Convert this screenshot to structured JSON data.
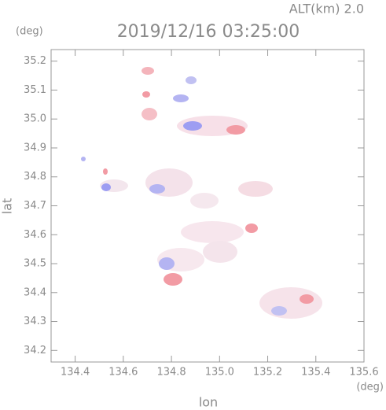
{
  "chart_data": {
    "type": "scatter",
    "title": "2019/12/16 03:25:00",
    "altitude_label": "ALT(km) 2.0",
    "y_unit": "(deg)",
    "x_unit": "(deg)",
    "xlabel": "lon",
    "ylabel": "lat",
    "xlim": [
      134.3,
      135.6
    ],
    "ylim": [
      34.16,
      35.24
    ],
    "xticks": [
      134.4,
      134.6,
      134.8,
      {
        "value": 135.0,
        "label": "135.0"
      },
      135.2,
      135.4,
      135.6
    ],
    "yticks": [
      34.2,
      34.3,
      34.4,
      34.5,
      34.6,
      34.7,
      34.8,
      34.9,
      {
        "value": 35.0,
        "label": "35.0"
      },
      35.1,
      35.2
    ],
    "grid": false
  }
}
